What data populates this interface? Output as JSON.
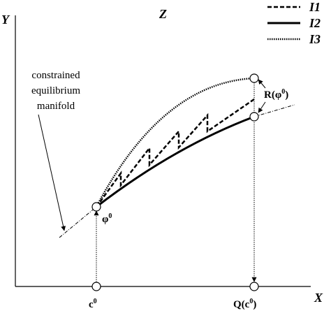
{
  "axes": {
    "y": "Y",
    "x": "X",
    "z": "Z"
  },
  "legend": [
    "I1",
    "I2",
    "I3"
  ],
  "manifold_label": [
    "constrained",
    "equilibrium",
    "manifold"
  ],
  "labels": {
    "R": {
      "base": "R(φ",
      "sup": "0",
      "tail": ")"
    },
    "phi": {
      "base": "φ",
      "sup": "0"
    },
    "c": {
      "base": "c",
      "sup": "0"
    },
    "Q": {
      "base": "Q(c",
      "sup": "0",
      "tail": ")"
    }
  }
}
